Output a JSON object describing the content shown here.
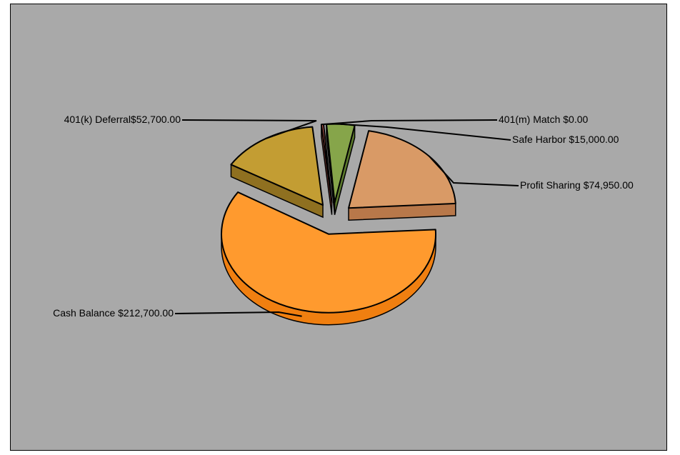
{
  "chart_data": {
    "type": "pie",
    "style": "3d-exploded",
    "background_color": "#a9a9a9",
    "slices": [
      {
        "label": "401(k) Deferral$52,700.00",
        "category": "401(k) Deferral",
        "value": 52700.0,
        "color": "#c39d33",
        "side_color": "#8f7020"
      },
      {
        "label": "401(m) Match $0.00",
        "category": "401(m) Match",
        "value": 0.0,
        "color": "#d2655a",
        "side_color": "#a04a40"
      },
      {
        "label": "Safe Harbor $15,000.00",
        "category": "Safe Harbor",
        "value": 15000.0,
        "color": "#86a54a",
        "side_color": "#5c7a2c"
      },
      {
        "label": "Profit Sharing $74,950.00",
        "category": "Profit Sharing",
        "value": 74950.0,
        "color": "#d99a66",
        "side_color": "#b8784a"
      },
      {
        "label": "Cash Balance $212,700.00",
        "category": "Cash Balance",
        "value": 212700.0,
        "color": "#ff9a2e",
        "side_color": "#f07f10"
      }
    ]
  }
}
